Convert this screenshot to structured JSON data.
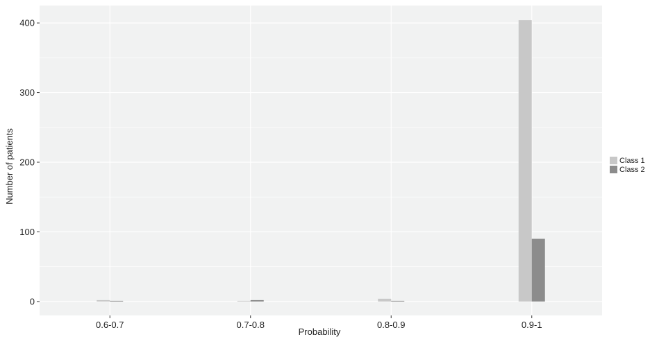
{
  "chart_data": {
    "type": "bar",
    "categories": [
      "0.6-0.7",
      "0.7-0.8",
      "0.8-0.9",
      "0.9-1"
    ],
    "series": [
      {
        "name": "Class 1",
        "values": [
          2,
          1,
          4,
          404
        ],
        "color": "#c8c8c8"
      },
      {
        "name": "Class 2",
        "values": [
          1,
          2,
          1,
          90
        ],
        "color": "#8c8c8c"
      }
    ],
    "xlabel": "Probability",
    "ylabel": "Number of patients",
    "ylim": [
      -20,
      425
    ],
    "yticks": [
      0,
      100,
      200,
      300,
      400
    ],
    "grid": true,
    "legend_position": "right",
    "panel_color": "#f1f2f2",
    "grid_color": "#ffffff"
  }
}
